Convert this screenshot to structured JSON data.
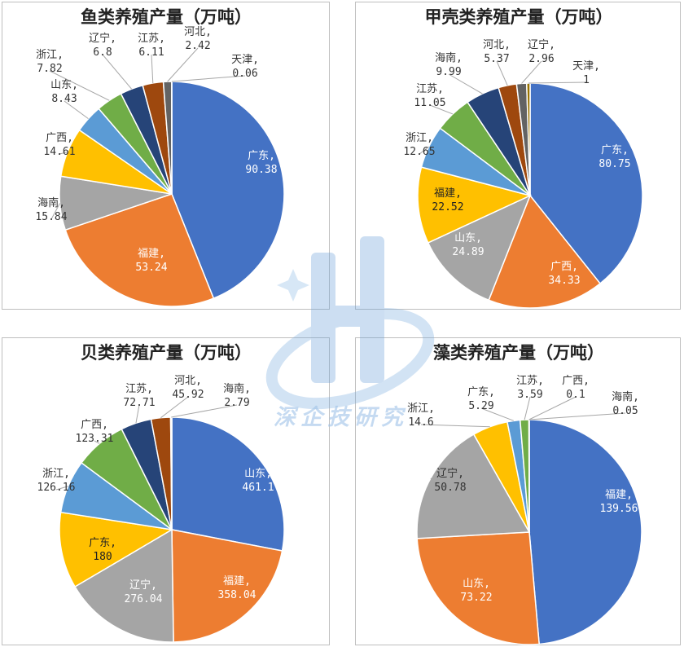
{
  "charts": [
    {
      "title": "鱼类养殖产量（万吨）",
      "chart_data": {
        "type": "pie",
        "title": "鱼类养殖产量（万吨）",
        "slices": [
          {
            "name": "广东",
            "value": 90.38,
            "display": "90.38",
            "color": "#4472c4"
          },
          {
            "name": "福建",
            "value": 53.24,
            "display": "53.24",
            "color": "#ed7d31"
          },
          {
            "name": "海南",
            "value": 15.84,
            "display": "15.84",
            "color": "#a5a5a5"
          },
          {
            "name": "广西",
            "value": 14.61,
            "display": "14.61",
            "color": "#ffc000"
          },
          {
            "name": "山东",
            "value": 8.43,
            "display": "8.43",
            "color": "#5b9bd5"
          },
          {
            "name": "浙江",
            "value": 7.82,
            "display": "7.82",
            "color": "#70ad47"
          },
          {
            "name": "辽宁",
            "value": 6.8,
            "display": "6.8",
            "color": "#264478"
          },
          {
            "name": "江苏",
            "value": 6.11,
            "display": "6.11",
            "color": "#9e480e"
          },
          {
            "name": "河北",
            "value": 2.42,
            "display": "2.42",
            "color": "#636363"
          },
          {
            "name": "天津",
            "value": 0.06,
            "display": "0.06",
            "color": "#997300"
          }
        ]
      }
    },
    {
      "title": "甲壳类养殖产量（万吨）",
      "chart_data": {
        "type": "pie",
        "title": "甲壳类养殖产量（万吨）",
        "slices": [
          {
            "name": "广东",
            "value": 80.75,
            "display": "80.75",
            "color": "#4472c4"
          },
          {
            "name": "广西",
            "value": 34.33,
            "display": "34.33",
            "color": "#ed7d31"
          },
          {
            "name": "山东",
            "value": 24.89,
            "display": "24.89",
            "color": "#a5a5a5"
          },
          {
            "name": "福建",
            "value": 22.52,
            "display": "22.52",
            "color": "#ffc000"
          },
          {
            "name": "浙江",
            "value": 12.65,
            "display": "12.65",
            "color": "#5b9bd5"
          },
          {
            "name": "江苏",
            "value": 11.05,
            "display": "11.05",
            "color": "#70ad47"
          },
          {
            "name": "海南",
            "value": 9.99,
            "display": "9.99",
            "color": "#264478"
          },
          {
            "name": "河北",
            "value": 5.37,
            "display": "5.37",
            "color": "#9e480e"
          },
          {
            "name": "辽宁",
            "value": 2.96,
            "display": "2.96",
            "color": "#636363"
          },
          {
            "name": "天津",
            "value": 1,
            "display": "1",
            "color": "#997300"
          }
        ]
      }
    },
    {
      "title": "贝类养殖产量（万吨）",
      "chart_data": {
        "type": "pie",
        "title": "贝类养殖产量（万吨）",
        "slices": [
          {
            "name": "山东",
            "value": 461.1,
            "display": "461.1",
            "color": "#4472c4"
          },
          {
            "name": "福建",
            "value": 358.04,
            "display": "358.04",
            "color": "#ed7d31"
          },
          {
            "name": "辽宁",
            "value": 276.04,
            "display": "276.04",
            "color": "#a5a5a5"
          },
          {
            "name": "广东",
            "value": 180,
            "display": "180",
            "color": "#ffc000"
          },
          {
            "name": "浙江",
            "value": 126.16,
            "display": "126.16",
            "color": "#5b9bd5"
          },
          {
            "name": "广西",
            "value": 123.31,
            "display": "123.31",
            "color": "#70ad47"
          },
          {
            "name": "江苏",
            "value": 72.71,
            "display": "72.71",
            "color": "#264478"
          },
          {
            "name": "河北",
            "value": 45.92,
            "display": "45.92",
            "color": "#9e480e"
          },
          {
            "name": "海南",
            "value": 2.79,
            "display": "2.79",
            "color": "#636363"
          }
        ]
      }
    },
    {
      "title": "藻类养殖产量（万吨）",
      "chart_data": {
        "type": "pie",
        "title": "藻类养殖产量（万吨）",
        "slices": [
          {
            "name": "福建",
            "value": 139.56,
            "display": "139.56",
            "color": "#4472c4"
          },
          {
            "name": "山东",
            "value": 73.22,
            "display": "73.22",
            "color": "#ed7d31"
          },
          {
            "name": "辽宁",
            "value": 50.78,
            "display": "50.78",
            "color": "#a5a5a5"
          },
          {
            "name": "浙江",
            "value": 14.6,
            "display": "14.6",
            "color": "#ffc000"
          },
          {
            "name": "广东",
            "value": 5.29,
            "display": "5.29",
            "color": "#5b9bd5"
          },
          {
            "name": "江苏",
            "value": 3.59,
            "display": "3.59",
            "color": "#70ad47"
          },
          {
            "name": "广西",
            "value": 0.1,
            "display": "0.1",
            "color": "#264478"
          },
          {
            "name": "海南",
            "value": 0.05,
            "display": "0.05",
            "color": "#9e480e"
          }
        ]
      }
    }
  ],
  "watermark": {
    "text": "深企技研究"
  }
}
